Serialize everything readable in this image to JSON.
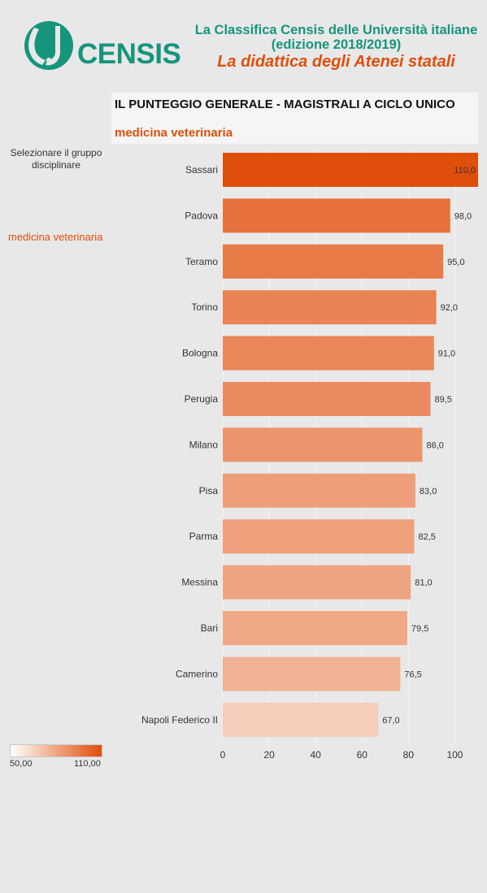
{
  "header": {
    "logo_text": "CENSIS",
    "title_line1": "La Classifica Censis delle Università italiane",
    "title_line2": "(edizione 2018/2019)",
    "subtitle": "La didattica degli Atenei statali"
  },
  "filter": {
    "label": "Selezionare il gruppo disciplinare",
    "selected": "medicina veterinaria"
  },
  "legend": {
    "min_label": "50,00",
    "max_label": "110,00"
  },
  "colors": {
    "brand_green": "#16957d",
    "accent_orange": "#e04e0b",
    "scale_low": "#ffffff",
    "scale_high": "#e04e0b"
  },
  "chart_data": {
    "type": "bar",
    "orientation": "horizontal",
    "title": "IL PUNTEGGIO GENERALE - MAGISTRALI A CICLO UNICO",
    "subtitle": "medicina veterinaria",
    "categories": [
      "Sassari",
      "Padova",
      "Teramo",
      "Torino",
      "Bologna",
      "Perugia",
      "Milano",
      "Pisa",
      "Parma",
      "Messina",
      "Bari",
      "Camerino",
      "Napoli Federico II"
    ],
    "values": [
      110.0,
      98.0,
      95.0,
      92.0,
      91.0,
      89.5,
      86.0,
      83.0,
      82.5,
      81.0,
      79.5,
      76.5,
      67.0
    ],
    "value_labels": [
      "110,0",
      "98,0",
      "95,0",
      "92,0",
      "91,0",
      "89,5",
      "86,0",
      "83,0",
      "82,5",
      "81,0",
      "79,5",
      "76,5",
      "67,0"
    ],
    "xlim": [
      0,
      110
    ],
    "xticks": [
      0,
      20,
      40,
      60,
      80,
      100
    ],
    "color_scale": [
      50,
      110
    ],
    "grid": true,
    "xlabel": "",
    "ylabel": ""
  }
}
